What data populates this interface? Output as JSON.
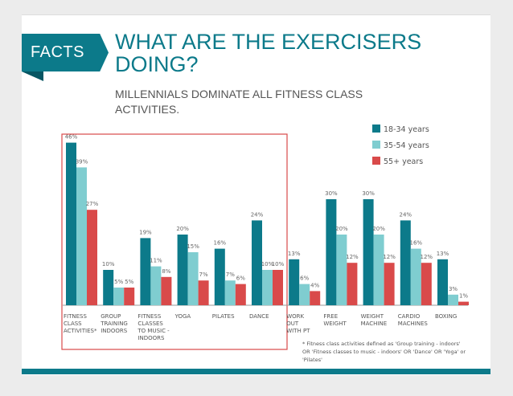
{
  "header": {
    "badge": "FACTS",
    "title_line1": "WHAT ARE THE EXERCISERS",
    "title_line2": "DOING?",
    "subtitle_line1": "MILLENNIALS DOMINATE ALL FITNESS CLASS",
    "subtitle_line2": "ACTIVITIES."
  },
  "footnote": "* Fitness class activities defined as 'Group training - indoors' OR 'Fitness classes to music - indoors' OR 'Dance' OR 'Yoga' or 'Pilates'",
  "colors": {
    "accent": "#0c7a8a",
    "series_18_34": "#0c7a8a",
    "series_35_54": "#7fcdd0",
    "series_55_plus": "#d94a4a",
    "highlight_box": "#d94a4a"
  },
  "chart_data": {
    "type": "bar",
    "title": "WHAT ARE THE EXERCISERS DOING?",
    "subtitle": "MILLENNIALS DOMINATE ALL FITNESS CLASS ACTIVITIES.",
    "xlabel": "",
    "ylabel": "",
    "ylim": [
      0,
      50
    ],
    "grid": false,
    "legend_position": "top-right",
    "value_suffix": "%",
    "categories": [
      [
        "FITNESS",
        "CLASS",
        "ACTIVITIES*"
      ],
      [
        "GROUP",
        "TRAINING",
        "INDOORS"
      ],
      [
        "FITNESS",
        "CLASSES",
        "TO MUSIC -",
        "INDOORS"
      ],
      [
        "YOGA"
      ],
      [
        "PILATES"
      ],
      [
        "DANCE"
      ],
      [
        "WORK",
        "OUT",
        "WITH PT"
      ],
      [
        "FREE",
        "WEIGHT"
      ],
      [
        "WEIGHT",
        "MACHINE"
      ],
      [
        "CARDIO",
        "MACHINES"
      ],
      [
        "BOXING"
      ]
    ],
    "series": [
      {
        "name": "18-34 years",
        "color": "#0c7a8a",
        "values": [
          46,
          10,
          19,
          20,
          16,
          24,
          13,
          30,
          30,
          24,
          13
        ]
      },
      {
        "name": "35-54 years",
        "color": "#7fcdd0",
        "values": [
          39,
          5,
          11,
          15,
          7,
          10,
          6,
          20,
          20,
          16,
          3
        ]
      },
      {
        "name": "55+ years",
        "color": "#d94a4a",
        "values": [
          27,
          5,
          8,
          7,
          6,
          10,
          4,
          12,
          12,
          12,
          1
        ]
      }
    ],
    "highlighted_categories": [
      0,
      1,
      2,
      3,
      4,
      5
    ]
  }
}
